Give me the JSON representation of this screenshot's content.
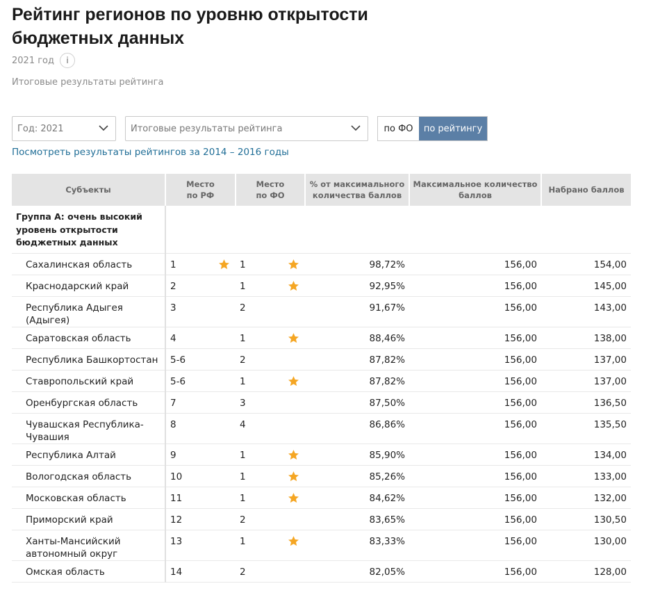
{
  "header": {
    "title": "Рейтинг регионов по уровню открытости бюджетных данных",
    "year": "2021 год",
    "info_glyph": "i",
    "subtitle": "Итоговые результаты рейтинга"
  },
  "filters": {
    "year_select": "Год: 2021",
    "result_select": "Итоговые результаты рейтинга",
    "toggle_fo": "по ФО",
    "toggle_rating": "по рейтингу",
    "toggle_active": "по рейтингу"
  },
  "history_link": "Посмотреть результаты рейтингов за 2014 – 2016 годы",
  "colors": {
    "accent": "#5b7fa6",
    "link": "#1f6d96",
    "star": "#f5a623",
    "header_bg": "#e4e4e4"
  },
  "table": {
    "columns": {
      "subject": "Субъекты",
      "rank_rf_1": "Место",
      "rank_rf_2": "по РФ",
      "rank_fo_1": "Место",
      "rank_fo_2": "по ФО",
      "pct_1": "% от максимального",
      "pct_2": "количества баллов",
      "max_1": "Максимальное количество",
      "max_2": "баллов",
      "score": "Набрано баллов"
    },
    "group": "Группа А: очень высокий уровень открытости бюджетных данных",
    "rows": [
      {
        "name": "Сахалинская область",
        "rank_rf": "1",
        "rank_fo": "1",
        "star_rf": true,
        "star_fo": true,
        "pct": "98,72%",
        "max": "156,00",
        "score": "154,00"
      },
      {
        "name": "Краснодарский край",
        "rank_rf": "2",
        "rank_fo": "1",
        "star_rf": false,
        "star_fo": true,
        "pct": "92,95%",
        "max": "156,00",
        "score": "145,00"
      },
      {
        "name": "Республика Адыгея (Адыгея)",
        "rank_rf": "3",
        "rank_fo": "2",
        "star_rf": false,
        "star_fo": false,
        "pct": "91,67%",
        "max": "156,00",
        "score": "143,00"
      },
      {
        "name": "Саратовская область",
        "rank_rf": "4",
        "rank_fo": "1",
        "star_rf": false,
        "star_fo": true,
        "pct": "88,46%",
        "max": "156,00",
        "score": "138,00"
      },
      {
        "name": "Республика Башкортостан",
        "rank_rf": "5-6",
        "rank_fo": "2",
        "star_rf": false,
        "star_fo": false,
        "pct": "87,82%",
        "max": "156,00",
        "score": "137,00"
      },
      {
        "name": "Ставропольский край",
        "rank_rf": "5-6",
        "rank_fo": "1",
        "star_rf": false,
        "star_fo": true,
        "pct": "87,82%",
        "max": "156,00",
        "score": "137,00"
      },
      {
        "name": "Оренбургская область",
        "rank_rf": "7",
        "rank_fo": "3",
        "star_rf": false,
        "star_fo": false,
        "pct": "87,50%",
        "max": "156,00",
        "score": "136,50"
      },
      {
        "name": "Чувашская Республика-Чувашия",
        "rank_rf": "8",
        "rank_fo": "4",
        "star_rf": false,
        "star_fo": false,
        "pct": "86,86%",
        "max": "156,00",
        "score": "135,50"
      },
      {
        "name": "Республика Алтай",
        "rank_rf": "9",
        "rank_fo": "1",
        "star_rf": false,
        "star_fo": true,
        "pct": "85,90%",
        "max": "156,00",
        "score": "134,00"
      },
      {
        "name": "Вологодская область",
        "rank_rf": "10",
        "rank_fo": "1",
        "star_rf": false,
        "star_fo": true,
        "pct": "85,26%",
        "max": "156,00",
        "score": "133,00"
      },
      {
        "name": "Московская область",
        "rank_rf": "11",
        "rank_fo": "1",
        "star_rf": false,
        "star_fo": true,
        "pct": "84,62%",
        "max": "156,00",
        "score": "132,00"
      },
      {
        "name": "Приморский край",
        "rank_rf": "12",
        "rank_fo": "2",
        "star_rf": false,
        "star_fo": false,
        "pct": "83,65%",
        "max": "156,00",
        "score": "130,50"
      },
      {
        "name": "Ханты-Мансийский автономный округ",
        "rank_rf": "13",
        "rank_fo": "1",
        "star_rf": false,
        "star_fo": true,
        "pct": "83,33%",
        "max": "156,00",
        "score": "130,00"
      },
      {
        "name": "Омская область",
        "rank_rf": "14",
        "rank_fo": "2",
        "star_rf": false,
        "star_fo": false,
        "pct": "82,05%",
        "max": "156,00",
        "score": "128,00"
      }
    ]
  }
}
